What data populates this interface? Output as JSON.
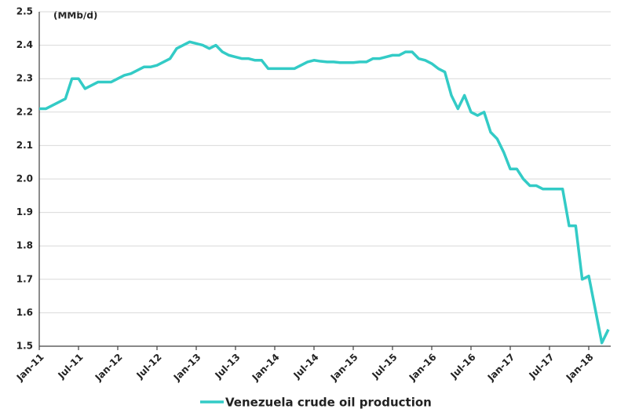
{
  "chart_data": {
    "type": "line",
    "annotation": "(MMb/d)",
    "categories": [
      "Jan-11",
      null,
      null,
      null,
      null,
      null,
      "Jul-11",
      null,
      null,
      null,
      null,
      null,
      "Jan-12",
      null,
      null,
      null,
      null,
      null,
      "Jul-12",
      null,
      null,
      null,
      null,
      null,
      "Jan-13",
      null,
      null,
      null,
      null,
      null,
      "Jul-13",
      null,
      null,
      null,
      null,
      null,
      "Jan-14",
      null,
      null,
      null,
      null,
      null,
      "Jul-14",
      null,
      null,
      null,
      null,
      null,
      "Jan-15",
      null,
      null,
      null,
      null,
      null,
      "Jul-15",
      null,
      null,
      null,
      null,
      null,
      "Jan-16",
      null,
      null,
      null,
      null,
      null,
      "Jul-16",
      null,
      null,
      null,
      null,
      null,
      "Jan-17",
      null,
      null,
      null,
      null,
      null,
      "Jul-17",
      null,
      null,
      null,
      null,
      null,
      "Jan-18",
      null,
      null,
      null
    ],
    "series": [
      {
        "name": "Venezuela crude oil production",
        "color": "#33cbc6",
        "values": [
          2.21,
          2.21,
          2.22,
          2.23,
          2.24,
          2.3,
          2.3,
          2.27,
          2.28,
          2.29,
          2.29,
          2.29,
          2.3,
          2.31,
          2.315,
          2.325,
          2.335,
          2.335,
          2.34,
          2.35,
          2.36,
          2.39,
          2.4,
          2.41,
          2.405,
          2.4,
          2.39,
          2.4,
          2.38,
          2.37,
          2.365,
          2.36,
          2.36,
          2.355,
          2.355,
          2.33,
          2.33,
          2.33,
          2.33,
          2.33,
          2.34,
          2.35,
          2.355,
          2.352,
          2.35,
          2.35,
          2.348,
          2.348,
          2.348,
          2.35,
          2.35,
          2.36,
          2.36,
          2.365,
          2.37,
          2.37,
          2.38,
          2.38,
          2.36,
          2.355,
          2.345,
          2.33,
          2.32,
          2.25,
          2.21,
          2.25,
          2.2,
          2.19,
          2.2,
          2.14,
          2.12,
          2.08,
          2.03,
          2.03,
          2.0,
          1.98,
          1.98,
          1.97,
          1.97,
          1.97,
          1.97,
          1.86,
          1.86,
          1.7,
          1.71,
          1.61,
          1.51,
          1.55
        ]
      }
    ],
    "ylim": [
      1.5,
      2.5
    ],
    "yticks": [
      1.5,
      1.6,
      1.7,
      1.8,
      1.9,
      {
        "value": 2,
        "label": "2.0"
      },
      2.1,
      2.2,
      2.3,
      2.4,
      2.5
    ],
    "grid": true,
    "legend": "bottom"
  }
}
